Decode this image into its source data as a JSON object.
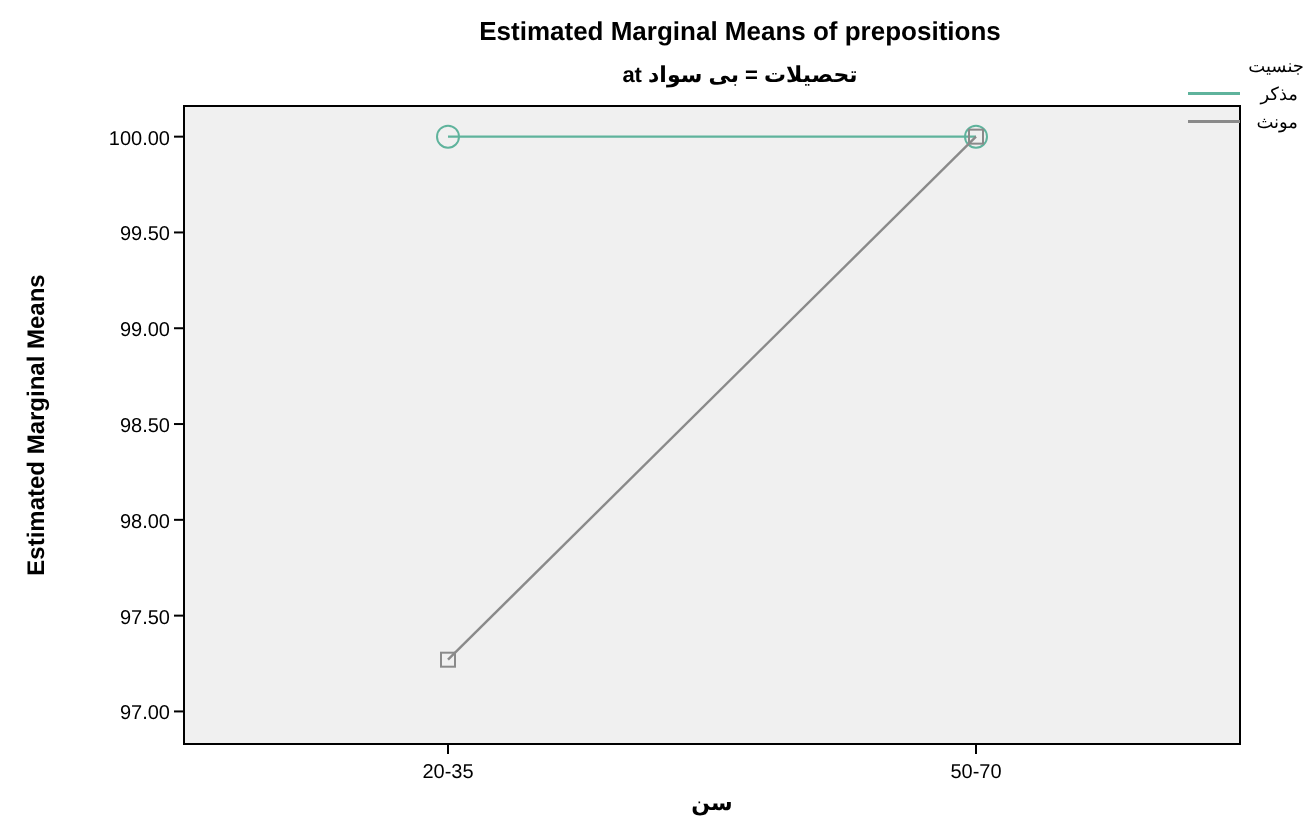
{
  "chart_data": {
    "type": "line",
    "title": "Estimated Marginal Means of prepositions",
    "subtitle": "تحصیلات = بی سواد at",
    "xlabel": "سن",
    "ylabel": "Estimated Marginal Means",
    "legend_title": "جنسیت",
    "categories": [
      "20-35",
      "50-70"
    ],
    "series": [
      {
        "name": "مذکر",
        "color": "#5fb39c",
        "marker": "circle",
        "values": [
          100.0,
          100.0
        ]
      },
      {
        "name": "مونث",
        "color": "#8a8a8a",
        "marker": "square",
        "values": [
          97.27,
          100.0
        ]
      }
    ],
    "ylim": [
      96.83,
      100.16
    ],
    "yticks": [
      {
        "value": 97,
        "label": "97.00"
      },
      {
        "value": 97.5,
        "label": "97.50"
      },
      {
        "value": 98,
        "label": "98.00"
      },
      {
        "value": 98.5,
        "label": "98.50"
      },
      {
        "value": 99,
        "label": "99.00"
      },
      {
        "value": 99.5,
        "label": "99.50"
      },
      {
        "value": 100,
        "label": "100.00"
      }
    ],
    "grid": false,
    "legend": "top right",
    "line_style": "solid"
  }
}
